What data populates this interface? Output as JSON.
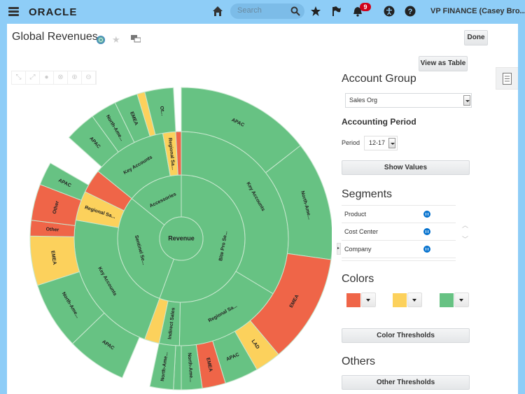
{
  "topbar": {
    "brand": "ORACLE",
    "search_placeholder": "Search",
    "notifications_count": "9",
    "user_label": "VP FINANCE (Casey Bro..."
  },
  "page": {
    "title": "Global Revenues",
    "done_label": "Done",
    "view_as_table_label": "View as Table",
    "chart_toolbar": [
      "collapse-icon",
      "expand-icon",
      "check-icon",
      "cancel-icon",
      "zoom-in-icon",
      "zoom-out-icon"
    ]
  },
  "panel": {
    "account_group_heading": "Account Group",
    "account_group_value": "Sales Org",
    "accounting_period_heading": "Accounting Period",
    "period_label": "Period",
    "period_value": "12-17",
    "show_values_label": "Show Values",
    "segments_heading": "Segments",
    "segments": [
      {
        "label": "Product"
      },
      {
        "label": "Cost Center"
      },
      {
        "label": "Company"
      }
    ],
    "colors_heading": "Colors",
    "colors": [
      "#ef6548",
      "#fcd15c",
      "#67c283"
    ],
    "color_thresholds_label": "Color Thresholds",
    "others_heading": "Others",
    "other_thresholds_label": "Other Thresholds"
  },
  "chart_data": {
    "type": "sunburst",
    "title": "Global Revenues",
    "center_label": "Revenue",
    "colors": {
      "red": "#ef6548",
      "yellow": "#fcd15c",
      "green": "#67c283"
    },
    "radii": [
      31,
      91,
      153,
      216
    ],
    "levels": [
      [
        {
          "label": "Bite Pro Se...",
          "start": 0,
          "end": 200,
          "color": "green"
        },
        {
          "label": "Sentinel Se...",
          "start": 200,
          "end": 309,
          "color": "green"
        },
        {
          "label": "Accessories",
          "start": 309,
          "end": 360,
          "color": "green"
        }
      ],
      [
        {
          "label": "Key Accounts",
          "start": 0,
          "end": 121,
          "color": "green"
        },
        {
          "label": "Regional Sa...",
          "start": 121,
          "end": 181,
          "color": "green"
        },
        {
          "label": "Indirect Sales",
          "start": 181,
          "end": 192,
          "color": "green"
        },
        {
          "label": "",
          "start": 192,
          "end": 200,
          "color": "yellow"
        },
        {
          "label": "Key Accounts",
          "start": 200,
          "end": 280,
          "color": "green"
        },
        {
          "label": "Regional Sa...",
          "start": 280,
          "end": 296,
          "color": "yellow"
        },
        {
          "label": "",
          "start": 296,
          "end": 309,
          "color": "red"
        },
        {
          "label": "Key Accounts",
          "start": 309,
          "end": 350,
          "color": "green"
        },
        {
          "label": "Regional Sa...",
          "start": 350,
          "end": 357,
          "color": "yellow"
        },
        {
          "label": "",
          "start": 357,
          "end": 360,
          "color": "red"
        }
      ],
      [
        {
          "label": "APAC",
          "start": 0,
          "end": 52,
          "color": "green"
        },
        {
          "label": "North-Ame...",
          "start": 52,
          "end": 98,
          "color": "green"
        },
        {
          "label": "EMEA",
          "start": 98,
          "end": 140,
          "color": "red"
        },
        {
          "label": "LAD",
          "start": 140,
          "end": 150,
          "color": "yellow"
        },
        {
          "label": "APAC",
          "start": 150,
          "end": 163,
          "color": "green"
        },
        {
          "label": "EMEA",
          "start": 163,
          "end": 172,
          "color": "red"
        },
        {
          "label": "North-Ame...",
          "start": 172,
          "end": 180,
          "color": "green"
        },
        {
          "label": "",
          "start": 180,
          "end": 183,
          "color": "green"
        },
        {
          "label": "North-Ame...",
          "start": 183,
          "end": 192,
          "color": "green"
        },
        {
          "label": "APAC",
          "start": 203,
          "end": 226,
          "color": "green"
        },
        {
          "label": "North-Ame...",
          "start": 226,
          "end": 252,
          "color": "green"
        },
        {
          "label": "EMEA",
          "start": 252,
          "end": 271,
          "color": "yellow"
        },
        {
          "label": "Other",
          "start": 271,
          "end": 277,
          "color": "red"
        },
        {
          "label": "Other",
          "start": 277,
          "end": 291,
          "color": "red"
        },
        {
          "label": "APAC",
          "start": 291,
          "end": 300,
          "color": "green"
        },
        {
          "label": "APAC",
          "start": 312,
          "end": 324,
          "color": "green"
        },
        {
          "label": "North-Ame...",
          "start": 324,
          "end": 334,
          "color": "green"
        },
        {
          "label": "EMEA",
          "start": 334,
          "end": 343,
          "color": "green"
        },
        {
          "label": "",
          "start": 343,
          "end": 346,
          "color": "yellow"
        },
        {
          "label": "Ot...",
          "start": 346,
          "end": 357,
          "color": "green"
        }
      ]
    ]
  }
}
